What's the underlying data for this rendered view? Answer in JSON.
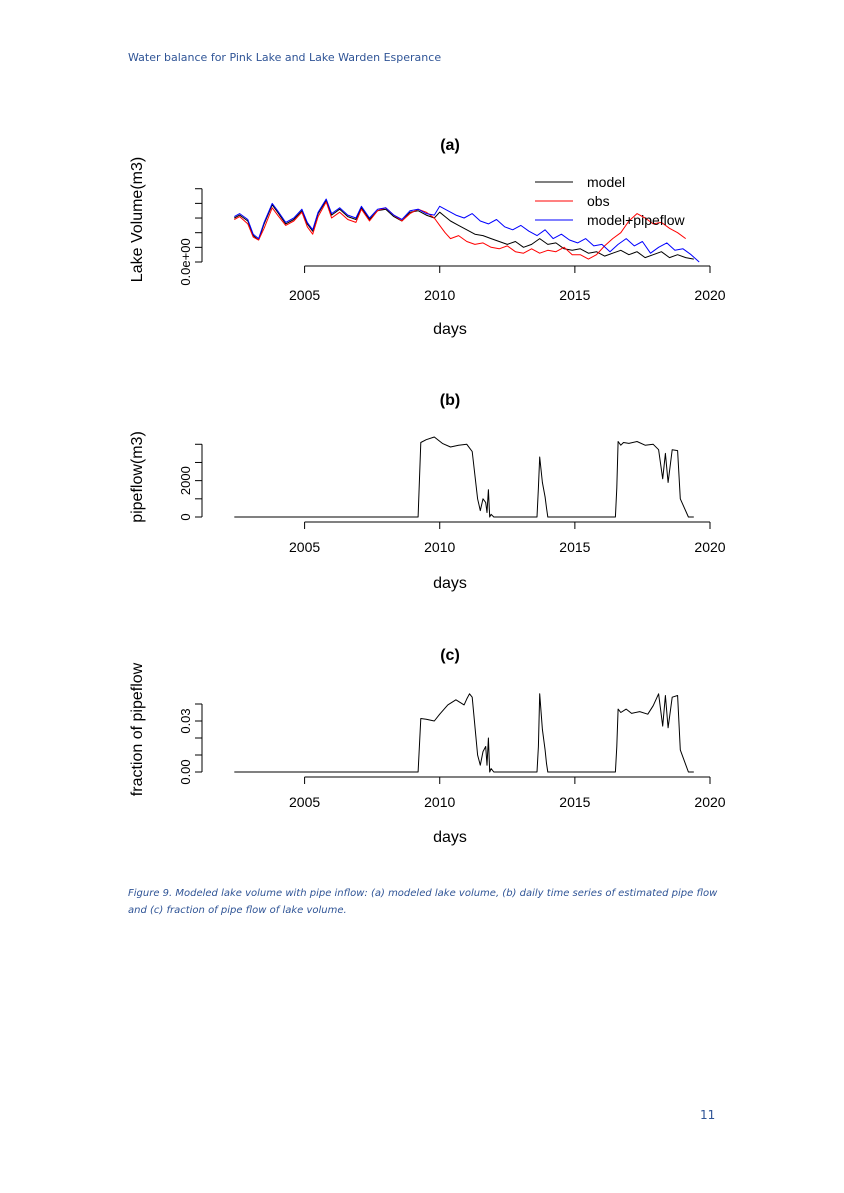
{
  "header": {
    "running_title": "Water balance for Pink Lake and Lake Warden Esperance"
  },
  "figure": {
    "caption": "Figure 9. Modeled lake volume with pipe inflow: (a) modeled lake volume, (b) daily time series of estimated pipe flow and (c) fraction of pipe flow of lake volume."
  },
  "page_number": "11",
  "chart_data": [
    {
      "type": "line",
      "title": "(a)",
      "xlabel": "days",
      "ylabel": "Lake Volume(m3)",
      "xlim": [
        2001.5,
        2020.0
      ],
      "ylim": [
        0,
        5.8
      ],
      "x_ticks": [
        2005,
        2010,
        2015,
        2020
      ],
      "x_tick_labels": [
        "2005",
        "2010",
        "2015",
        "2020"
      ],
      "y_ticks": [
        0,
        1,
        2,
        3,
        4,
        5
      ],
      "y_tick_labels": [
        "0.0e+00",
        "",
        "",
        "",
        "",
        ""
      ],
      "legend": {
        "position": "top-right",
        "entries": [
          "model",
          "obs",
          "model+pipeflow"
        ]
      },
      "colors": {
        "model": "#000000",
        "obs": "#ff0000",
        "model+pipeflow": "#0000ff"
      },
      "series": [
        {
          "name": "model",
          "x": [
            2002.4,
            2002.6,
            2002.9,
            2003.1,
            2003.3,
            2003.5,
            2003.8,
            2004.0,
            2004.3,
            2004.6,
            2004.9,
            2005.1,
            2005.3,
            2005.5,
            2005.8,
            2006.0,
            2006.3,
            2006.6,
            2006.9,
            2007.1,
            2007.4,
            2007.7,
            2008.0,
            2008.3,
            2008.6,
            2008.9,
            2009.2,
            2009.5,
            2009.8,
            2010.0,
            2010.2,
            2010.4,
            2010.7,
            2011.0,
            2011.3,
            2011.6,
            2011.9,
            2012.2,
            2012.5,
            2012.8,
            2013.1,
            2013.4,
            2013.7,
            2014.0,
            2014.3,
            2014.6,
            2014.9,
            2015.2,
            2015.5,
            2015.8,
            2016.1,
            2016.4,
            2016.7,
            2017.0,
            2017.3,
            2017.6,
            2017.9,
            2018.2,
            2018.5,
            2018.8,
            2019.1,
            2019.4
          ],
          "y": [
            3.0,
            3.2,
            2.8,
            1.8,
            1.5,
            2.6,
            3.9,
            3.4,
            2.6,
            2.9,
            3.5,
            2.6,
            2.1,
            3.3,
            4.2,
            3.2,
            3.6,
            3.1,
            2.9,
            3.7,
            2.9,
            3.5,
            3.6,
            3.1,
            2.8,
            3.4,
            3.5,
            3.2,
            3.0,
            3.4,
            3.1,
            2.8,
            2.5,
            2.2,
            1.9,
            1.8,
            1.6,
            1.4,
            1.2,
            1.4,
            1.0,
            1.2,
            1.6,
            1.2,
            1.3,
            0.9,
            0.8,
            0.9,
            0.6,
            0.7,
            0.4,
            0.6,
            0.8,
            0.5,
            0.7,
            0.3,
            0.5,
            0.7,
            0.3,
            0.5,
            0.3,
            0.2
          ]
        },
        {
          "name": "obs",
          "x": [
            2002.4,
            2002.6,
            2002.9,
            2003.1,
            2003.3,
            2003.5,
            2003.8,
            2004.0,
            2004.3,
            2004.6,
            2004.9,
            2005.1,
            2005.3,
            2005.5,
            2005.8,
            2006.0,
            2006.3,
            2006.6,
            2006.9,
            2007.1,
            2007.4,
            2007.7,
            2008.0,
            2008.3,
            2008.6,
            2008.9,
            2009.2,
            2009.5,
            2009.8,
            2010.0,
            2010.2,
            2010.4,
            2010.7,
            2011.0,
            2011.3,
            2011.6,
            2011.9,
            2012.2,
            2012.5,
            2012.8,
            2013.1,
            2013.4,
            2013.7,
            2014.0,
            2014.3,
            2014.6,
            2014.9,
            2015.2,
            2015.5,
            2015.8,
            2016.1,
            2016.4,
            2016.7,
            2017.0,
            2017.3,
            2017.6,
            2017.9,
            2018.2,
            2018.5,
            2018.8,
            2019.1
          ],
          "y": [
            2.9,
            3.1,
            2.6,
            1.7,
            1.5,
            2.3,
            3.7,
            3.2,
            2.5,
            2.8,
            3.4,
            2.4,
            1.9,
            3.1,
            4.1,
            3.0,
            3.4,
            2.9,
            2.7,
            3.6,
            2.8,
            3.5,
            3.7,
            3.2,
            2.8,
            3.3,
            3.6,
            3.4,
            3.0,
            2.5,
            2.0,
            1.6,
            1.8,
            1.4,
            1.2,
            1.3,
            1.0,
            0.9,
            1.1,
            0.7,
            0.6,
            0.9,
            0.6,
            0.8,
            0.7,
            1.0,
            0.5,
            0.5,
            0.2,
            0.5,
            1.1,
            1.6,
            2.0,
            2.8,
            3.3,
            3.0,
            2.6,
            2.7,
            2.3,
            2.0,
            1.6
          ]
        },
        {
          "name": "model+pipeflow",
          "x": [
            2002.4,
            2002.6,
            2002.9,
            2003.1,
            2003.3,
            2003.5,
            2003.8,
            2004.0,
            2004.3,
            2004.6,
            2004.9,
            2005.1,
            2005.3,
            2005.5,
            2005.8,
            2006.0,
            2006.3,
            2006.6,
            2006.9,
            2007.1,
            2007.4,
            2007.7,
            2008.0,
            2008.3,
            2008.6,
            2008.9,
            2009.2,
            2009.5,
            2009.8,
            2010.0,
            2010.3,
            2010.6,
            2010.9,
            2011.2,
            2011.5,
            2011.8,
            2012.1,
            2012.4,
            2012.7,
            2013.0,
            2013.3,
            2013.6,
            2013.9,
            2014.2,
            2014.5,
            2014.8,
            2015.1,
            2015.4,
            2015.7,
            2016.0,
            2016.3,
            2016.6,
            2016.9,
            2017.2,
            2017.5,
            2017.8,
            2018.1,
            2018.4,
            2018.7,
            2019.0,
            2019.3,
            2019.6
          ],
          "y": [
            3.1,
            3.3,
            2.9,
            1.9,
            1.6,
            2.7,
            4.0,
            3.5,
            2.7,
            3.0,
            3.6,
            2.7,
            2.2,
            3.4,
            4.3,
            3.3,
            3.7,
            3.2,
            3.0,
            3.8,
            3.0,
            3.6,
            3.7,
            3.2,
            2.9,
            3.5,
            3.6,
            3.3,
            3.2,
            3.8,
            3.5,
            3.2,
            3.0,
            3.3,
            2.8,
            2.6,
            2.9,
            2.4,
            2.2,
            2.5,
            2.1,
            1.8,
            2.2,
            1.6,
            1.9,
            1.5,
            1.3,
            1.6,
            1.1,
            1.2,
            0.7,
            1.2,
            1.6,
            1.1,
            1.4,
            0.6,
            1.0,
            1.3,
            0.8,
            0.9,
            0.5,
            0.0
          ]
        }
      ]
    },
    {
      "type": "line",
      "title": "(b)",
      "xlabel": "days",
      "ylabel": "pipeflow(m3)",
      "xlim": [
        2001.5,
        2020.0
      ],
      "ylim": [
        0,
        4400
      ],
      "x_ticks": [
        2005,
        2010,
        2015,
        2020
      ],
      "x_tick_labels": [
        "2005",
        "2010",
        "2015",
        "2020"
      ],
      "y_ticks": [
        0,
        1000,
        2000,
        3000,
        4000
      ],
      "y_tick_labels": [
        "0",
        "",
        "2000",
        "",
        ""
      ],
      "series": [
        {
          "x": [
            2002.4,
            2009.2,
            2009.3,
            2009.5,
            2009.8,
            2010.1,
            2010.4,
            2010.7,
            2011.0,
            2011.1,
            2011.2,
            2011.4,
            2011.5,
            2011.6,
            2011.7,
            2011.75,
            2011.8,
            2011.85,
            2011.9,
            2012.0,
            2013.6,
            2013.65,
            2013.7,
            2013.8,
            2013.9,
            2013.95,
            2014.0,
            2016.5,
            2016.55,
            2016.6,
            2016.7,
            2016.8,
            2017.0,
            2017.3,
            2017.6,
            2017.9,
            2018.1,
            2018.25,
            2018.35,
            2018.45,
            2018.6,
            2018.8,
            2018.9,
            2019.2,
            2019.4
          ],
          "y": [
            0,
            0,
            4100,
            4250,
            4400,
            4050,
            3850,
            3950,
            4000,
            3800,
            3600,
            1000,
            350,
            1000,
            800,
            250,
            1500,
            0,
            150,
            0,
            0,
            1600,
            3300,
            1900,
            1100,
            500,
            0,
            0,
            1600,
            4150,
            3950,
            4100,
            4050,
            4150,
            3950,
            4000,
            3700,
            2100,
            3500,
            1900,
            3700,
            3650,
            1000,
            0,
            0
          ]
        }
      ]
    },
    {
      "type": "line",
      "title": "(c)",
      "xlabel": "days",
      "ylabel": "fraction of pipeflow",
      "xlim": [
        2001.5,
        2020.0
      ],
      "ylim": [
        0,
        0.05
      ],
      "x_ticks": [
        2005,
        2010,
        2015,
        2020
      ],
      "x_tick_labels": [
        "2005",
        "2010",
        "2015",
        "2020"
      ],
      "y_ticks": [
        0,
        0.01,
        0.02,
        0.03,
        0.04
      ],
      "y_tick_labels": [
        "0.00",
        "",
        "",
        "0.03",
        ""
      ],
      "series": [
        {
          "x": [
            2002.4,
            2009.2,
            2009.3,
            2009.5,
            2009.8,
            2010.0,
            2010.3,
            2010.6,
            2010.9,
            2011.0,
            2011.1,
            2011.2,
            2011.4,
            2011.5,
            2011.6,
            2011.7,
            2011.75,
            2011.8,
            2011.85,
            2011.9,
            2012.0,
            2013.6,
            2013.65,
            2013.7,
            2013.8,
            2013.9,
            2013.95,
            2014.0,
            2016.5,
            2016.55,
            2016.6,
            2016.7,
            2016.9,
            2017.1,
            2017.4,
            2017.7,
            2017.9,
            2018.1,
            2018.25,
            2018.35,
            2018.45,
            2018.6,
            2018.8,
            2018.9,
            2019.2,
            2019.4
          ],
          "y": [
            0,
            0,
            0.0315,
            0.031,
            0.03,
            0.034,
            0.0395,
            0.0425,
            0.0395,
            0.043,
            0.046,
            0.044,
            0.01,
            0.004,
            0.012,
            0.015,
            0.004,
            0.02,
            0,
            0.002,
            0,
            0,
            0.015,
            0.046,
            0.025,
            0.013,
            0.005,
            0,
            0,
            0.015,
            0.037,
            0.035,
            0.037,
            0.0345,
            0.0355,
            0.034,
            0.039,
            0.046,
            0.027,
            0.045,
            0.026,
            0.044,
            0.045,
            0.013,
            0,
            0
          ]
        }
      ]
    }
  ]
}
